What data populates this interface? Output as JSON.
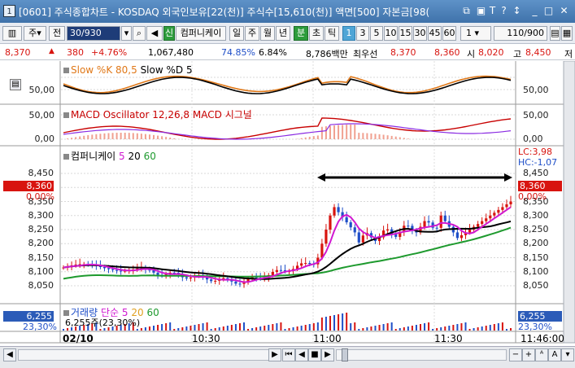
{
  "window": {
    "title": "[0601] 주식종합차트 - KOSDAQ 외국인보유[22(천)] 주식수[15,610(천)] 액면[500] 자본금[98(",
    "icon_label": "1"
  },
  "toolbar": {
    "type_select": "주",
    "period_label": "전",
    "code_input": "30/930",
    "stock_name": "컴퍼니케이",
    "new_badge": "신",
    "periods": [
      "일",
      "주",
      "월",
      "년",
      "분",
      "초",
      "틱"
    ],
    "active_period": "분",
    "intervals": [
      "1",
      "3",
      "5",
      "10",
      "15",
      "30",
      "45",
      "60"
    ],
    "active_interval": "1",
    "interval_select": "1",
    "count_display": "110/900"
  },
  "quote": {
    "price": "8,370",
    "change": "380",
    "change_pct": "+4.76%",
    "volume": "1,067,480",
    "ratio1": "74.85%",
    "ratio2": "6.84%",
    "trade_value": "8,786백만",
    "priority_label": "최우선",
    "ask": "8,370",
    "bid": "8,360",
    "open_label": "시",
    "open": "8,020",
    "high_label": "고",
    "high": "8,450",
    "low_label": "저"
  },
  "stoch_panel": {
    "label1": "Slow %K 80,5",
    "label2": "Slow %D 5",
    "ticks": [
      "50,00"
    ]
  },
  "macd_panel": {
    "label1": "MACD Oscillator 12,26,8",
    "label2": "MACD",
    "label3": "시그널",
    "ticks": [
      "50,00",
      "0,00"
    ]
  },
  "price_panel": {
    "name": "컴퍼니케이",
    "ma1": "5",
    "ma2": "20",
    "ma3": "60",
    "ticks": [
      "8,450",
      "8,400",
      "8,350",
      "8,300",
      "8,250",
      "8,200",
      "8,150",
      "8,100",
      "8,050"
    ],
    "current_price": "8,360",
    "current_pct": "0,00%",
    "lc": "LC:3,98",
    "hc": "HC:-1,07"
  },
  "volume_panel": {
    "label": "거래량",
    "type": "단순",
    "ma1": "5",
    "ma2": "20",
    "ma3": "60",
    "value_line": "6,255주(23,30%)",
    "badge_value": "6,255",
    "badge_pct": "23,30%"
  },
  "time_axis": {
    "date": "02/10",
    "labels": [
      "10:30",
      "11:00",
      "11:30"
    ],
    "end_time": "11:46:00"
  },
  "colors": {
    "up": "#d8140f",
    "down": "#1f4fc8",
    "ma5": "#d018d0",
    "ma20": "#000000",
    "ma60": "#1e9a2e",
    "stoch_k": "#000000",
    "stoch_d": "#e07818",
    "macd_line": "#c80000"
  }
}
